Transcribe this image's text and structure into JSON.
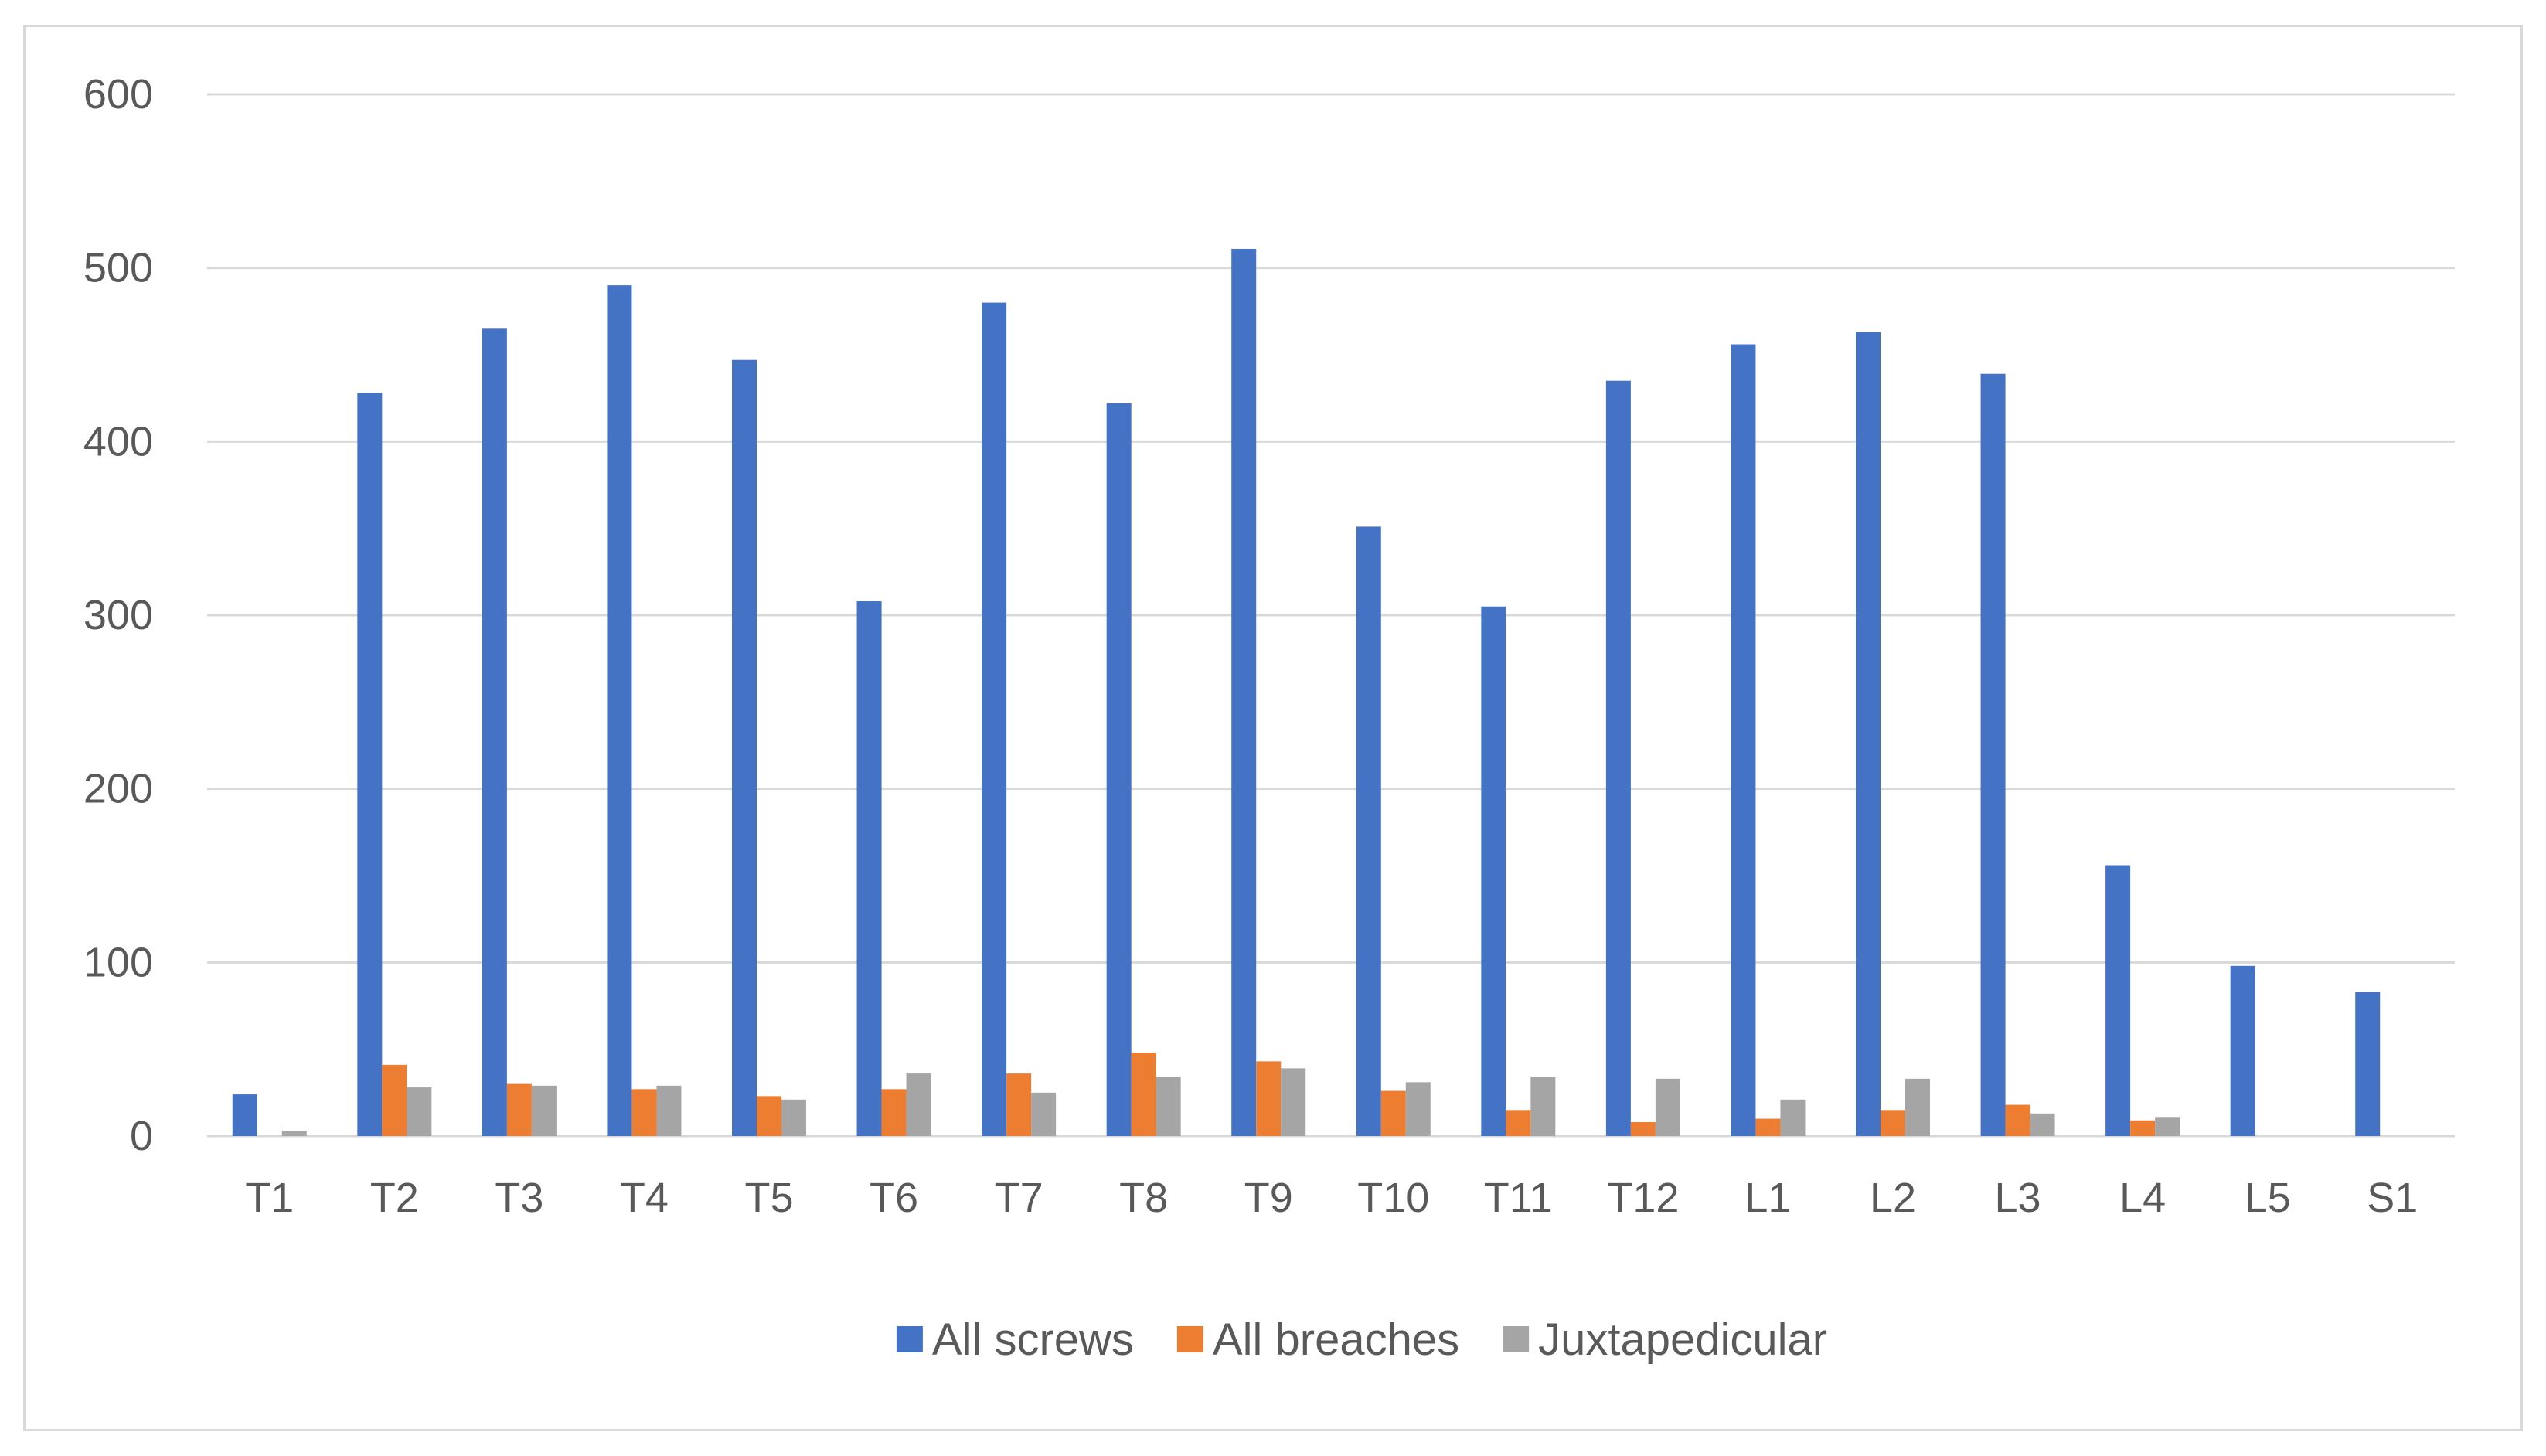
{
  "chart_data": {
    "type": "bar",
    "categories": [
      "T1",
      "T2",
      "T3",
      "T4",
      "T5",
      "T6",
      "T7",
      "T8",
      "T9",
      "T10",
      "T11",
      "T12",
      "L1",
      "L2",
      "L3",
      "L4",
      "L5",
      "S1"
    ],
    "series": [
      {
        "name": "All screws",
        "color": "#4472c4",
        "values": [
          24,
          428,
          465,
          490,
          447,
          308,
          480,
          422,
          511,
          351,
          305,
          435,
          456,
          463,
          439,
          156,
          98,
          83
        ]
      },
      {
        "name": "All breaches",
        "color": "#ed7d31",
        "values": [
          0,
          41,
          30,
          27,
          23,
          27,
          36,
          48,
          43,
          26,
          15,
          8,
          10,
          15,
          18,
          9,
          0,
          0
        ]
      },
      {
        "name": "Juxtapedicular",
        "color": "#a5a5a5",
        "values": [
          3,
          28,
          29,
          29,
          21,
          36,
          25,
          34,
          39,
          31,
          34,
          33,
          21,
          33,
          13,
          11,
          0,
          0
        ]
      }
    ],
    "yticks": [
      "0",
      "100",
      "200",
      "300",
      "400",
      "500",
      "600"
    ],
    "ylim": [
      0,
      600
    ],
    "grid": true,
    "legend_position": "bottom"
  }
}
